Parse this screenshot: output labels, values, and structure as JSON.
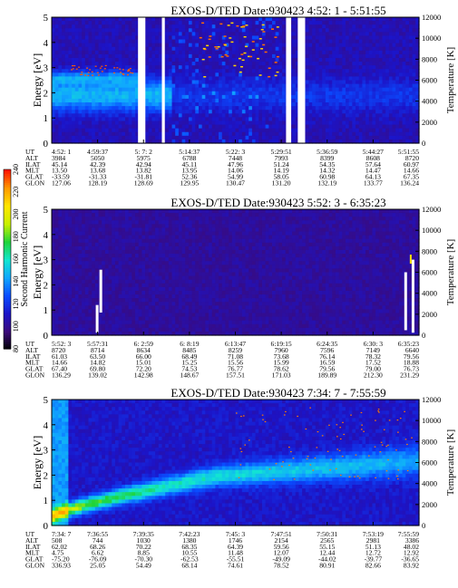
{
  "colorbar": {
    "label": "Second Harmonic Current",
    "ticks": [
      80,
      100,
      120,
      140,
      160,
      180,
      200,
      220,
      240
    ],
    "colors": [
      "#000000",
      "#3b0a7a",
      "#1c14c8",
      "#0a4cff",
      "#10a6ff",
      "#12e6d0",
      "#1fd43a",
      "#c8f000",
      "#ffe600",
      "#ff9a00",
      "#ff1400"
    ]
  },
  "panels": [
    {
      "title": "EXOS-D/TED   Date:930423  4:52: 1 - 5:51:55",
      "ylabel": "Energy [eV]",
      "y2label": "Temperature [K]",
      "yticks": [
        "0",
        "1",
        "2",
        "3",
        "4",
        "5"
      ],
      "y2ticks": [
        "0",
        "2000",
        "4000",
        "6000",
        "8000",
        "10000",
        "12000"
      ],
      "rows": [
        {
          "label": "UT",
          "values": [
            "4:52: 1",
            "4:59:37",
            "5: 7: 2",
            "5:14:37",
            "5:22: 3",
            "5:29:51",
            "5:36:59",
            "5:44:27",
            "5:51:55"
          ]
        },
        {
          "label": "ALT",
          "values": [
            "3984",
            "5050",
            "5975",
            "6788",
            "7448",
            "7993",
            "8399",
            "8608",
            "8720"
          ]
        },
        {
          "label": "ILAT",
          "values": [
            "45.14",
            "42.39",
            "42.94",
            "45.11",
            "47.96",
            "51.24",
            "54.35",
            "57.64",
            "60.97"
          ]
        },
        {
          "label": "MLT",
          "values": [
            "13.50",
            "13.68",
            "13.82",
            "13.95",
            "14.06",
            "14.19",
            "14.32",
            "14.47",
            "14.66"
          ]
        },
        {
          "label": "GLAT",
          "values": [
            "-33.59",
            "-31.33",
            "-31.81",
            "52.36",
            "54.99",
            "58.05",
            "60.98",
            "64.13",
            "67.35"
          ]
        },
        {
          "label": "GLON",
          "values": [
            "127.06",
            "128.19",
            "128.69",
            "129.95",
            "130.47",
            "131.20",
            "132.19",
            "133.77",
            "136.24"
          ]
        }
      ]
    },
    {
      "title": "EXOS-D/TED   Date:930423  5:52: 3 - 6:35:23",
      "ylabel": "Energy [eV]",
      "y2label": "Temperature [K]",
      "yticks": [
        "0",
        "1",
        "2",
        "3",
        "4",
        "5"
      ],
      "y2ticks": [
        "0",
        "2000",
        "4000",
        "6000",
        "8000",
        "10000",
        "12000"
      ],
      "rows": [
        {
          "label": "UT",
          "values": [
            "5:52: 3",
            "5:57:31",
            "6: 2:59",
            "6: 8:19",
            "6:13:47",
            "6:19:15",
            "6:24:35",
            "6:30: 3",
            "6:35:23"
          ]
        },
        {
          "label": "ALT",
          "values": [
            "8720",
            "8714",
            "8634",
            "8485",
            "8259",
            "7960",
            "7596",
            "7149",
            "6640"
          ]
        },
        {
          "label": "ILAT",
          "values": [
            "61.03",
            "63.50",
            "66.00",
            "68.49",
            "71.08",
            "73.68",
            "76.14",
            "78.32",
            "79.56"
          ]
        },
        {
          "label": "MLT",
          "values": [
            "14.66",
            "14.82",
            "15.01",
            "15.25",
            "15.56",
            "15.99",
            "16.59",
            "17.52",
            "18.88"
          ]
        },
        {
          "label": "GLAT",
          "values": [
            "67.40",
            "69.80",
            "72.20",
            "74.53",
            "76.77",
            "78.62",
            "79.56",
            "79.00",
            "76.73"
          ]
        },
        {
          "label": "GLON",
          "values": [
            "136.29",
            "139.02",
            "142.98",
            "148.67",
            "157.51",
            "171.03",
            "189.89",
            "212.30",
            "231.29"
          ]
        }
      ]
    },
    {
      "title": "EXOS-D/TED   Date:930423  7:34: 7 - 7:55:59",
      "ylabel": "Energy [eV]",
      "y2label": "Temperature [K]",
      "yticks": [
        "0",
        "1",
        "2",
        "3",
        "4",
        "5"
      ],
      "y2ticks": [
        "0",
        "2000",
        "4000",
        "6000",
        "8000",
        "10000",
        "12000"
      ],
      "rows": [
        {
          "label": "UT",
          "values": [
            "7:34: 7",
            "7:36:55",
            "7:39:35",
            "7:42:23",
            "7:45: 3",
            "7:47:51",
            "7:50:31",
            "7:53:19",
            "7:55:59"
          ]
        },
        {
          "label": "ALT",
          "values": [
            "508",
            "744",
            "1030",
            "1380",
            "1746",
            "2154",
            "2565",
            "2981",
            "3386"
          ]
        },
        {
          "label": "ILAT",
          "values": [
            "62.02",
            "68.26",
            "70.22",
            "68.35",
            "64.39",
            "59.56",
            "55.15",
            "51.13",
            "48.02"
          ]
        },
        {
          "label": "MLT",
          "values": [
            "4.75",
            "6.62",
            "8.85",
            "10.55",
            "11.48",
            "12.07",
            "12.44",
            "12.72",
            "12.92"
          ]
        },
        {
          "label": "GLAT",
          "values": [
            "-75.20",
            "-76.09",
            "-70.30",
            "-62.53",
            "-55.51",
            "-49.09",
            "-44.02",
            "-39.77",
            "-36.65"
          ]
        },
        {
          "label": "GLON",
          "values": [
            "336.93",
            "25.05",
            "54.49",
            "68.14",
            "74.61",
            "78.52",
            "80.91",
            "82.66",
            "83.92"
          ]
        }
      ]
    }
  ],
  "chart_data": [
    {
      "type": "heatmap",
      "title": "EXOS-D/TED   Date:930423  4:52: 1 - 5:51:55",
      "ylabel": "Energy [eV]",
      "y2label": "Temperature [K]",
      "ylim": [
        0,
        5
      ],
      "y2lim": [
        0,
        12000
      ],
      "x_ticks": [
        "4:52: 1",
        "4:59:37",
        "5: 7: 2",
        "5:14:37",
        "5:22: 3",
        "5:29:51",
        "5:36:59",
        "5:44:27",
        "5:51:55"
      ],
      "colorbar": {
        "label": "Second Harmonic Current",
        "range": [
          80,
          240
        ]
      },
      "features": {
        "band_energy_eV": [
          1.2,
          2.6
        ],
        "band_level": 150,
        "background_level": 110,
        "gaps_ut": [
          [
            "5: 6:20",
            "5: 7:20"
          ],
          [
            "5: 9:10",
            "5: 9:40"
          ],
          [
            "5:29:10",
            "5:30:00"
          ],
          [
            "5:31:10",
            "5:31:50"
          ]
        ]
      }
    },
    {
      "type": "heatmap",
      "title": "EXOS-D/TED   Date:930423  5:52: 3 - 6:35:23",
      "ylabel": "Energy [eV]",
      "y2label": "Temperature [K]",
      "ylim": [
        0,
        5
      ],
      "y2lim": [
        0,
        12000
      ],
      "x_ticks": [
        "5:52: 3",
        "5:57:31",
        "6: 2:59",
        "6: 8:19",
        "6:13:47",
        "6:19:15",
        "6:24:35",
        "6:30: 3",
        "6:35:23"
      ],
      "colorbar": {
        "label": "Second Harmonic Current",
        "range": [
          80,
          240
        ]
      },
      "features": {
        "background_level": 105
      }
    },
    {
      "type": "heatmap",
      "title": "EXOS-D/TED   Date:930423  7:34: 7 - 7:55:59",
      "ylabel": "Energy [eV]",
      "y2label": "Temperature [K]",
      "ylim": [
        0,
        5
      ],
      "y2lim": [
        0,
        12000
      ],
      "x_ticks": [
        "7:34: 7",
        "7:36:55",
        "7:39:35",
        "7:42:23",
        "7:45: 3",
        "7:47:51",
        "7:50:31",
        "7:53:19",
        "7:55:59"
      ],
      "colorbar": {
        "label": "Second Harmonic Current",
        "range": [
          80,
          240
        ]
      },
      "features": {
        "band_start_energy_eV": 0.3,
        "band_end_energy_eV": 1.4,
        "band_peak_level": 190,
        "band_tail_level": 150,
        "background_level": 115
      }
    }
  ]
}
